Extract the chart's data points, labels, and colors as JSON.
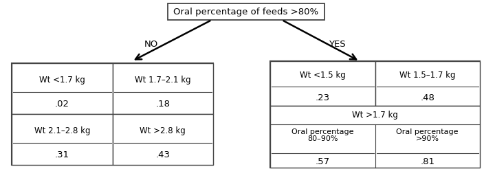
{
  "root_label": "Oral percentage of feeds >80%",
  "no_label": "NO",
  "yes_label": "YES",
  "left_box": {
    "cells": [
      {
        "label": "Wt <1.7 kg",
        "value": ".02",
        "col": 0,
        "row": 0
      },
      {
        "label": "Wt 1.7–2.1 kg",
        "value": ".18",
        "col": 1,
        "row": 0
      },
      {
        "label": "Wt 2.1–2.8 kg",
        "value": ".31",
        "col": 0,
        "row": 1
      },
      {
        "label": "Wt >2.8 kg",
        "value": ".43",
        "col": 1,
        "row": 1
      }
    ]
  },
  "right_box": {
    "top_cells": [
      {
        "label": "Wt <1.5 kg",
        "value": ".23"
      },
      {
        "label": "Wt 1.5–1.7 kg",
        "value": ".48"
      }
    ],
    "bottom_header": "Wt >1.7 kg",
    "bottom_cells": [
      {
        "label": "Oral percentage\n80–90%",
        "value": ".57"
      },
      {
        "label": "Oral percentage\n>90%",
        "value": ".81"
      }
    ]
  },
  "bg_color": "#ffffff",
  "box_edge_color": "#444444",
  "text_color": "#000000",
  "font_size": 8.5,
  "root_font_size": 9.5,
  "fig_w": 7.2,
  "fig_h": 2.62,
  "dpi": 100
}
